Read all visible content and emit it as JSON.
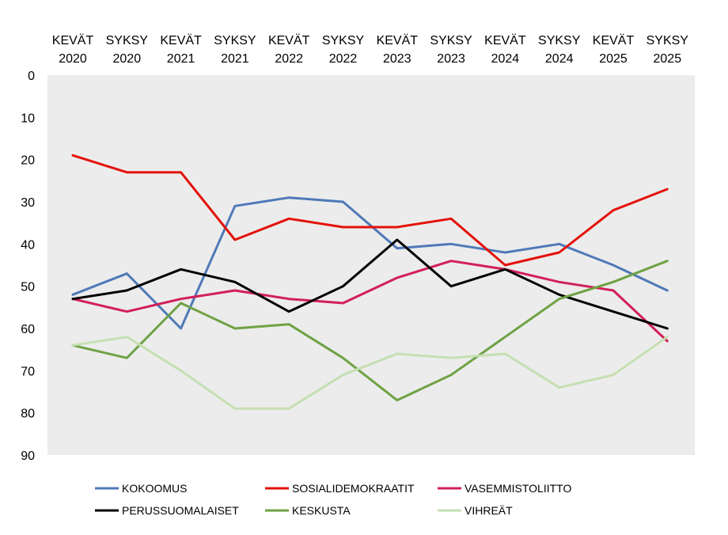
{
  "chart_data": {
    "type": "line",
    "title": "",
    "xlabel": "",
    "ylabel": "",
    "ylim": [
      0,
      90
    ],
    "y_inverted": true,
    "x_axis_position": "top",
    "grid": false,
    "legend_position": "bottom",
    "y_ticks": [
      0,
      10,
      20,
      30,
      40,
      50,
      60,
      70,
      80,
      90
    ],
    "categories": [
      {
        "season": "KEVÄT",
        "year": "2020"
      },
      {
        "season": "SYKSY",
        "year": "2020"
      },
      {
        "season": "KEVÄT",
        "year": "2021"
      },
      {
        "season": "SYKSY",
        "year": "2021"
      },
      {
        "season": "KEVÄT",
        "year": "2022"
      },
      {
        "season": "SYKSY",
        "year": "2022"
      },
      {
        "season": "KEVÄT",
        "year": "2023"
      },
      {
        "season": "SYKSY",
        "year": "2023"
      },
      {
        "season": "KEVÄT",
        "year": "2024"
      },
      {
        "season": "SYKSY",
        "year": "2024"
      },
      {
        "season": "KEVÄT",
        "year": "2025"
      },
      {
        "season": "SYKSY",
        "year": "2025"
      }
    ],
    "plot_background": "#ececec",
    "series": [
      {
        "name": "KOKOOMUS",
        "color": "#4f79b8",
        "values": [
          52,
          47,
          60,
          31,
          29,
          30,
          41,
          40,
          42,
          40,
          45,
          51
        ]
      },
      {
        "name": "SOSIALIDEMOKRAATIT",
        "color": "#e3120b",
        "values": [
          19,
          23,
          23,
          39,
          34,
          36,
          36,
          34,
          45,
          42,
          32,
          27
        ]
      },
      {
        "name": "VASEMMISTOLIITTO",
        "color": "#d21f5a",
        "values": [
          53,
          56,
          53,
          51,
          53,
          54,
          48,
          44,
          46,
          49,
          51,
          63
        ]
      },
      {
        "name": "PERUSSUOMALAISET",
        "color": "#000000",
        "values": [
          53,
          51,
          46,
          49,
          56,
          50,
          39,
          50,
          46,
          52,
          56,
          60
        ]
      },
      {
        "name": "KESKUSTA",
        "color": "#6ea244",
        "values": [
          64,
          67,
          54,
          60,
          59,
          67,
          77,
          71,
          62,
          53,
          49,
          44
        ]
      },
      {
        "name": "VIHREÄT",
        "color": "#c5dfb2",
        "values": [
          64,
          62,
          70,
          79,
          79,
          71,
          66,
          67,
          66,
          74,
          71,
          62
        ]
      }
    ]
  }
}
